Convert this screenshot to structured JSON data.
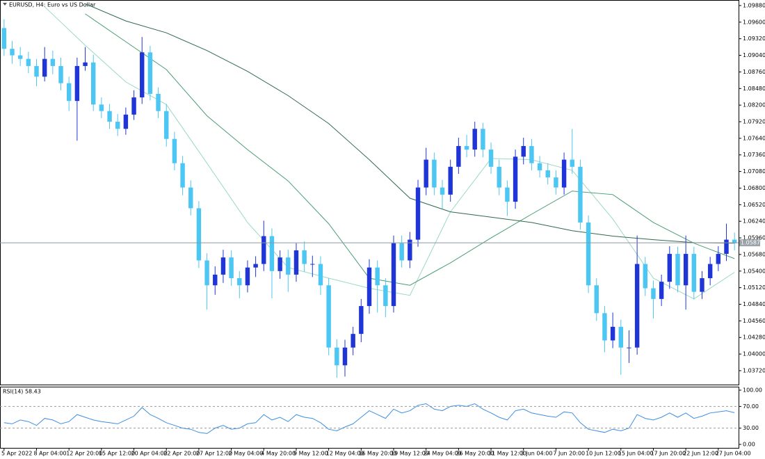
{
  "chart_data": [
    {
      "type": "candlestick",
      "title": "EURUSD, H4:  Euro vs US Dollar",
      "categories": [
        "5 Apr 2022",
        null,
        null,
        null,
        "8 Apr 04:00",
        null,
        null,
        null,
        "12 Apr 20:00",
        null,
        null,
        null,
        "15 Apr 12:00",
        null,
        null,
        null,
        "20 Apr 04:00",
        null,
        null,
        null,
        "22 Apr 20:00",
        null,
        null,
        null,
        "27 Apr 12:00",
        null,
        null,
        null,
        "2 May 04:00",
        null,
        null,
        null,
        "4 May 20:00",
        null,
        null,
        null,
        "9 May 12:00",
        null,
        null,
        null,
        "12 May 04:00",
        null,
        null,
        null,
        "16 May 20:00",
        null,
        null,
        null,
        "19 May 12:00",
        null,
        null,
        null,
        "24 May 04:00",
        null,
        null,
        null,
        "26 May 20:00",
        null,
        null,
        null,
        "31 May 12:00",
        null,
        null,
        null,
        "3 Jun 04:00",
        null,
        null,
        null,
        "7 Jun 20:00",
        null,
        null,
        null,
        "10 Jun 12:00",
        null,
        null,
        null,
        "15 Jun 04:00",
        null,
        null,
        null,
        "17 Jun 20:00",
        null,
        null,
        null,
        "22 Jun 12:00",
        null,
        null,
        null,
        "27 Jun 04:00",
        null,
        null
      ],
      "open": [
        1.095,
        1.0915,
        1.0904,
        1.0898,
        1.0886,
        1.0868,
        1.0898,
        1.0886,
        1.0857,
        1.0827,
        1.0886,
        1.0892,
        1.0821,
        1.081,
        1.0792,
        1.078,
        1.0804,
        1.0833,
        1.0909,
        1.0839,
        1.081,
        1.0763,
        1.0722,
        1.0681,
        1.0646,
        1.0558,
        1.0516,
        1.0534,
        1.0563,
        1.0528,
        1.0516,
        1.0546,
        1.0552,
        1.0599,
        1.054,
        1.0563,
        1.0534,
        1.0575,
        1.0552,
        1.0552,
        1.0516,
        1.0411,
        1.0381,
        1.0411,
        1.0434,
        1.0481,
        1.0546,
        1.0516,
        1.0481,
        1.0587,
        1.0558,
        1.0593,
        1.0681,
        1.0728,
        1.0681,
        1.0669,
        1.0716,
        1.0751,
        1.0745,
        1.078,
        1.0745,
        1.0716,
        1.0681,
        1.0657,
        1.0733,
        1.0751,
        1.0722,
        1.071,
        1.0698,
        1.0681,
        1.0728,
        1.0716,
        1.0622,
        1.0516,
        1.0469,
        1.0423,
        1.0446,
        1.0411,
        1.0411,
        1.0552,
        1.0511,
        1.0493,
        1.0522,
        1.0569,
        1.0516,
        1.0569,
        1.0505,
        1.0528,
        1.0552,
        1.0569,
        1.0593
      ],
      "high": [
        1.0965,
        1.0928,
        1.0918,
        1.091,
        1.0898,
        1.0918,
        1.0912,
        1.09,
        1.0868,
        1.09,
        1.0918,
        1.0905,
        1.0833,
        1.0822,
        1.0805,
        1.0816,
        1.0845,
        1.0935,
        1.092,
        1.085,
        1.0822,
        1.0775,
        1.0734,
        1.0693,
        1.0658,
        1.057,
        1.0548,
        1.0576,
        1.0575,
        1.054,
        1.0558,
        1.0565,
        1.0625,
        1.0612,
        1.0575,
        1.0576,
        1.0587,
        1.059,
        1.0566,
        1.0565,
        1.0528,
        1.0425,
        1.0424,
        1.0446,
        1.0493,
        1.056,
        1.0558,
        1.0528,
        1.06,
        1.06,
        1.0606,
        1.0694,
        1.0748,
        1.074,
        1.0694,
        1.0728,
        1.0765,
        1.077,
        1.0792,
        1.079,
        1.0757,
        1.0728,
        1.0693,
        1.0745,
        1.0765,
        1.0763,
        1.0734,
        1.0722,
        1.071,
        1.074,
        1.078,
        1.0728,
        1.0634,
        1.0528,
        1.0481,
        1.047,
        1.0458,
        1.044,
        1.06,
        1.0564,
        1.0524,
        1.0534,
        1.0582,
        1.0581,
        1.06,
        1.0581,
        1.054,
        1.0564,
        1.0582,
        1.062,
        1.0605
      ],
      "low": [
        1.0903,
        1.089,
        1.0886,
        1.0874,
        1.0852,
        1.086,
        1.0872,
        1.0845,
        1.081,
        1.076,
        1.0878,
        1.081,
        1.0798,
        1.078,
        1.0768,
        1.077,
        1.0795,
        1.0822,
        1.0828,
        1.0798,
        1.075,
        1.071,
        1.0668,
        1.0634,
        1.0545,
        1.0475,
        1.05,
        1.052,
        1.0515,
        1.0494,
        1.0504,
        1.053,
        1.054,
        1.0494,
        1.0527,
        1.0505,
        1.0522,
        1.0539,
        1.053,
        1.05,
        1.0398,
        1.036,
        1.0362,
        1.0398,
        1.042,
        1.0468,
        1.047,
        1.0462,
        1.047,
        1.0546,
        1.0545,
        1.0581,
        1.0668,
        1.0668,
        1.0645,
        1.0657,
        1.0704,
        1.0732,
        1.0733,
        1.0732,
        1.0704,
        1.0668,
        1.0633,
        1.0645,
        1.072,
        1.071,
        1.0698,
        1.0686,
        1.0669,
        1.0669,
        1.0704,
        1.061,
        1.0503,
        1.0456,
        1.0403,
        1.041,
        1.0365,
        1.0385,
        1.0399,
        1.0498,
        1.046,
        1.0481,
        1.051,
        1.0504,
        1.0475,
        1.0492,
        1.0493,
        1.0516,
        1.054,
        1.0557,
        1.0575
      ],
      "close": [
        1.0915,
        1.0904,
        1.0898,
        1.0886,
        1.0868,
        1.0898,
        1.0886,
        1.0857,
        1.0827,
        1.0886,
        1.0892,
        1.0821,
        1.081,
        1.0792,
        1.078,
        1.0804,
        1.0833,
        1.0909,
        1.0839,
        1.081,
        1.0763,
        1.0722,
        1.0681,
        1.0646,
        1.0558,
        1.0516,
        1.0534,
        1.0563,
        1.0528,
        1.0516,
        1.0546,
        1.0552,
        1.0599,
        1.054,
        1.0563,
        1.0534,
        1.0575,
        1.0552,
        1.0552,
        1.0516,
        1.0411,
        1.0381,
        1.0411,
        1.0434,
        1.0481,
        1.0546,
        1.0516,
        1.0481,
        1.0587,
        1.0558,
        1.0593,
        1.0681,
        1.0728,
        1.0681,
        1.0669,
        1.0716,
        1.0751,
        1.0745,
        1.078,
        1.0745,
        1.0716,
        1.0681,
        1.0657,
        1.0733,
        1.0751,
        1.0722,
        1.071,
        1.0698,
        1.0681,
        1.0728,
        1.0716,
        1.0622,
        1.0516,
        1.0469,
        1.0423,
        1.0446,
        1.0411,
        1.0411,
        1.0552,
        1.0511,
        1.0493,
        1.0522,
        1.0569,
        1.0516,
        1.0569,
        1.0505,
        1.0528,
        1.0552,
        1.0569,
        1.0593,
        1.0587
      ],
      "up_color": "#1f35d6",
      "down_color": "#4cc6f2",
      "moving_averages": [
        {
          "color": "#9ad9c2",
          "x": [
            5,
            10,
            15,
            20,
            25,
            30,
            35,
            40,
            45,
            50,
            55,
            60,
            65,
            70,
            75,
            80,
            85,
            90
          ],
          "values": [
            1.0986,
            1.0921,
            1.0859,
            1.0821,
            1.0722,
            1.0622,
            1.0546,
            1.0528,
            1.0511,
            1.0499,
            1.064,
            1.073,
            1.0728,
            1.071,
            1.0628,
            1.0528,
            1.0493,
            1.0538
          ]
        },
        {
          "color": "#4a9d74",
          "x": [
            10,
            15,
            20,
            25,
            30,
            35,
            40,
            45,
            50,
            55,
            60,
            65,
            70,
            75,
            80,
            85,
            90
          ],
          "values": [
            1.0974,
            1.0927,
            1.088,
            1.0802,
            1.0745,
            1.0692,
            1.062,
            1.0528,
            1.0516,
            1.0554,
            1.0596,
            1.0636,
            1.0675,
            1.0669,
            1.0622,
            1.0587,
            1.0561
          ]
        },
        {
          "color": "#2f6a4e",
          "x": [
            10,
            15,
            20,
            25,
            30,
            35,
            40,
            45,
            50,
            55,
            60,
            65,
            70,
            75,
            80,
            85,
            90
          ],
          "values": [
            1.0991,
            1.0962,
            1.0942,
            1.0912,
            1.0877,
            1.0836,
            1.0789,
            1.0728,
            1.0663,
            1.064,
            1.0631,
            1.0622,
            1.0608,
            1.0599,
            1.0593,
            1.0588,
            1.0587
          ]
        }
      ],
      "current_price": 1.05877,
      "ylim": [
        1.03485,
        1.0995
      ],
      "yticks": [
        {
          "value": 1.0988,
          "label": "1.09880"
        },
        {
          "value": 1.096,
          "label": "1.09600"
        },
        {
          "value": 1.0932,
          "label": "1.09320"
        },
        {
          "value": 1.0904,
          "label": "1.09040"
        },
        {
          "value": 1.0876,
          "label": "1.08760"
        },
        {
          "value": 1.0848,
          "label": "1.08480"
        },
        {
          "value": 1.082,
          "label": "1.08200"
        },
        {
          "value": 1.0792,
          "label": "1.07920"
        },
        {
          "value": 1.0764,
          "label": "1.07640"
        },
        {
          "value": 1.0736,
          "label": "1.07360"
        },
        {
          "value": 1.0708,
          "label": "1.07080"
        },
        {
          "value": 1.068,
          "label": "1.06800"
        },
        {
          "value": 1.0652,
          "label": "1.06520"
        },
        {
          "value": 1.0624,
          "label": "1.06240"
        },
        {
          "value": 1.0596,
          "label": "1.05960"
        },
        {
          "value": 1.0568,
          "label": "1.05680"
        },
        {
          "value": 1.054,
          "label": "1.05400"
        },
        {
          "value": 1.0512,
          "label": "1.05120"
        },
        {
          "value": 1.0484,
          "label": "1.04840"
        },
        {
          "value": 1.0456,
          "label": "1.04560"
        },
        {
          "value": 1.0428,
          "label": "1.04280"
        },
        {
          "value": 1.04,
          "label": "1.04000"
        },
        {
          "value": 1.0372,
          "label": "1.03720"
        }
      ]
    },
    {
      "type": "line",
      "title": "RSI(14) 58.43",
      "color": "#3d8fe0",
      "values": [
        40,
        38,
        45,
        42,
        35,
        48,
        45,
        38,
        42,
        55,
        50,
        45,
        42,
        40,
        38,
        45,
        52,
        68,
        55,
        48,
        40,
        35,
        30,
        28,
        22,
        20,
        30,
        35,
        28,
        30,
        38,
        40,
        55,
        45,
        50,
        42,
        55,
        50,
        48,
        40,
        28,
        25,
        32,
        38,
        50,
        62,
        55,
        48,
        65,
        58,
        62,
        72,
        75,
        65,
        62,
        70,
        72,
        70,
        75,
        65,
        58,
        50,
        45,
        62,
        65,
        58,
        55,
        52,
        50,
        60,
        58,
        40,
        28,
        25,
        22,
        28,
        25,
        30,
        55,
        48,
        45,
        50,
        58,
        50,
        58,
        48,
        52,
        58,
        60,
        62,
        58.43
      ],
      "levels": [
        30,
        70
      ],
      "ylim": [
        0,
        100
      ],
      "yticks": [
        {
          "value": 100,
          "label": "100.00"
        },
        {
          "value": 70,
          "label": "70.00"
        },
        {
          "value": 30,
          "label": "30.00"
        },
        {
          "value": 0,
          "label": "0.00"
        }
      ]
    }
  ]
}
